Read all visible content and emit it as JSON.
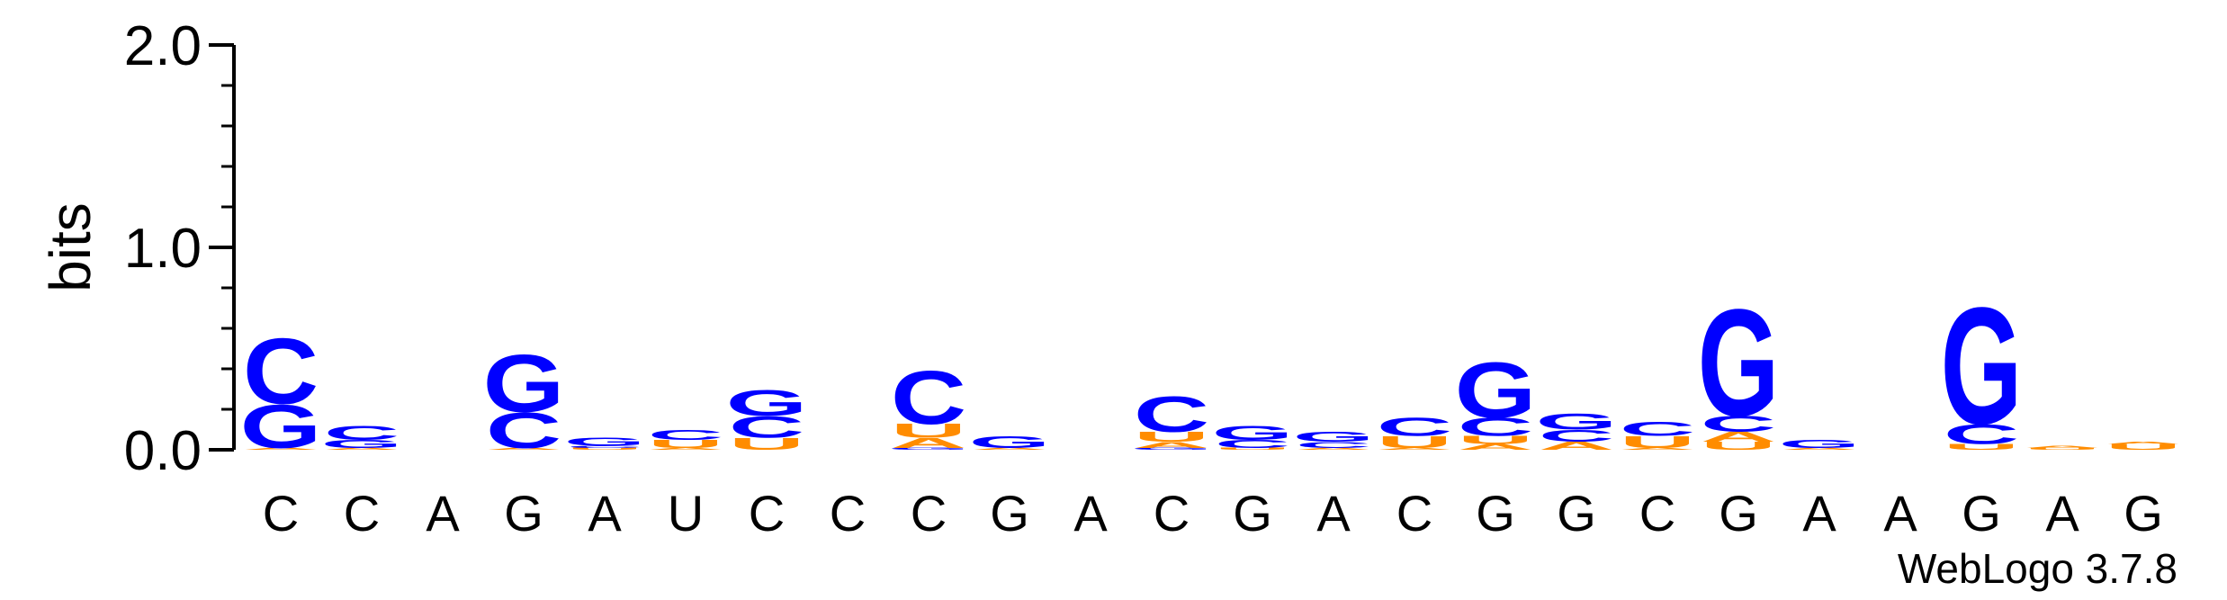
{
  "chart_data": {
    "type": "sequence-logo",
    "ylabel": "bits",
    "ylim": [
      0,
      2.0
    ],
    "yticks": [
      "0.0",
      "1.0",
      "2.0"
    ],
    "consensus": [
      "C",
      "C",
      "A",
      "G",
      "A",
      "U",
      "C",
      "C",
      "C",
      "G",
      "A",
      "C",
      "G",
      "A",
      "C",
      "G",
      "G",
      "C",
      "G",
      "A",
      "A",
      "G",
      "A",
      "G"
    ],
    "colors": {
      "A": "#FF8C00",
      "U": "#FF8C00",
      "C": "#0000FF",
      "G": "#0000FF"
    },
    "positions": [
      {
        "letters": [
          {
            "base": "A",
            "bits": 0.01
          },
          {
            "base": "G",
            "bits": 0.22
          },
          {
            "base": "C",
            "bits": 0.33
          }
        ]
      },
      {
        "letters": [
          {
            "base": "A",
            "bits": 0.01
          },
          {
            "base": "G",
            "bits": 0.04
          },
          {
            "base": "C",
            "bits": 0.07
          }
        ]
      },
      {
        "letters": []
      },
      {
        "letters": [
          {
            "base": "A",
            "bits": 0.01
          },
          {
            "base": "C",
            "bits": 0.18
          },
          {
            "base": "G",
            "bits": 0.29
          }
        ]
      },
      {
        "letters": [
          {
            "base": "U",
            "bits": 0.01
          },
          {
            "base": "C",
            "bits": 0.01
          },
          {
            "base": "G",
            "bits": 0.04
          }
        ]
      },
      {
        "letters": [
          {
            "base": "A",
            "bits": 0.01
          },
          {
            "base": "U",
            "bits": 0.04
          },
          {
            "base": "C",
            "bits": 0.05
          }
        ]
      },
      {
        "letters": [
          {
            "base": "U",
            "bits": 0.06
          },
          {
            "base": "C",
            "bits": 0.11
          },
          {
            "base": "G",
            "bits": 0.13
          }
        ]
      },
      {
        "letters": []
      },
      {
        "letters": [
          {
            "base": "G",
            "bits": 0.01
          },
          {
            "base": "A",
            "bits": 0.05
          },
          {
            "base": "U",
            "bits": 0.07
          },
          {
            "base": "C",
            "bits": 0.27
          }
        ]
      },
      {
        "letters": [
          {
            "base": "A",
            "bits": 0.01
          },
          {
            "base": "G",
            "bits": 0.06
          }
        ]
      },
      {
        "letters": []
      },
      {
        "letters": [
          {
            "base": "G",
            "bits": 0.01
          },
          {
            "base": "A",
            "bits": 0.03
          },
          {
            "base": "U",
            "bits": 0.05
          },
          {
            "base": "C",
            "bits": 0.18
          }
        ]
      },
      {
        "letters": [
          {
            "base": "U",
            "bits": 0.01
          },
          {
            "base": "C",
            "bits": 0.04
          },
          {
            "base": "G",
            "bits": 0.07
          }
        ]
      },
      {
        "letters": [
          {
            "base": "A",
            "bits": 0.01
          },
          {
            "base": "C",
            "bits": 0.03
          },
          {
            "base": "G",
            "bits": 0.05
          }
        ]
      },
      {
        "letters": [
          {
            "base": "A",
            "bits": 0.01
          },
          {
            "base": "U",
            "bits": 0.06
          },
          {
            "base": "C",
            "bits": 0.09
          }
        ]
      },
      {
        "letters": [
          {
            "base": "A",
            "bits": 0.03
          },
          {
            "base": "U",
            "bits": 0.04
          },
          {
            "base": "C",
            "bits": 0.09
          },
          {
            "base": "G",
            "bits": 0.28
          }
        ]
      },
      {
        "letters": [
          {
            "base": "A",
            "bits": 0.04
          },
          {
            "base": "C",
            "bits": 0.06
          },
          {
            "base": "G",
            "bits": 0.08
          }
        ]
      },
      {
        "letters": [
          {
            "base": "A",
            "bits": 0.01
          },
          {
            "base": "U",
            "bits": 0.06
          },
          {
            "base": "C",
            "bits": 0.07
          }
        ]
      },
      {
        "letters": [
          {
            "base": "U",
            "bits": 0.04
          },
          {
            "base": "A",
            "bits": 0.05
          },
          {
            "base": "C",
            "bits": 0.08
          },
          {
            "base": "G",
            "bits": 0.54
          }
        ]
      },
      {
        "letters": [
          {
            "base": "A",
            "bits": 0.01
          },
          {
            "base": "G",
            "bits": 0.04
          }
        ]
      },
      {
        "letters": []
      },
      {
        "letters": [
          {
            "base": "U",
            "bits": 0.03
          },
          {
            "base": "C",
            "bits": 0.1
          },
          {
            "base": "G",
            "bits": 0.59
          }
        ]
      },
      {
        "letters": [
          {
            "base": "U",
            "bits": 0.01
          },
          {
            "base": "A",
            "bits": 0.01
          }
        ]
      },
      {
        "letters": [
          {
            "base": "U",
            "bits": 0.03
          },
          {
            "base": "A",
            "bits": 0.01
          }
        ]
      }
    ]
  },
  "credit": "WebLogo 3.7.8"
}
